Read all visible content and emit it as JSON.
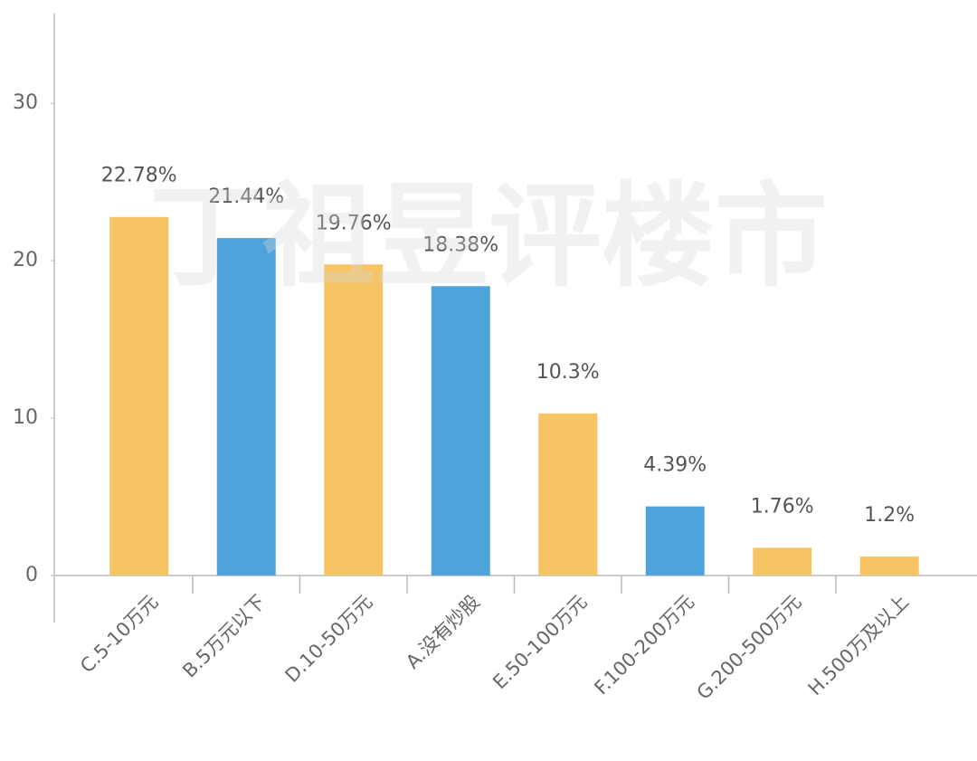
{
  "chart_data": {
    "type": "bar",
    "watermark": "丁祖昱评楼市",
    "categories": [
      "C.5-10万元",
      "B.5万元以下",
      "D.10-50万元",
      "A.没有炒股",
      "E.50-100万元",
      "F.100-200万元",
      "G.200-500万元",
      "H.500万及以上"
    ],
    "values": [
      22.78,
      21.44,
      19.76,
      18.38,
      10.3,
      4.39,
      1.76,
      1.2
    ],
    "value_labels": [
      "22.78%",
      "21.44%",
      "19.76%",
      "18.38%",
      "10.3%",
      "4.39%",
      "1.76%",
      "1.2%"
    ],
    "colors": [
      "#f6c462",
      "#4fa3dd",
      "#f6c462",
      "#4fa3dd",
      "#f6c462",
      "#4fa3dd",
      "#f6c462",
      "#f6c462"
    ],
    "ylim": [
      0,
      35.7
    ],
    "yticks": [
      0,
      10,
      20,
      30
    ]
  }
}
